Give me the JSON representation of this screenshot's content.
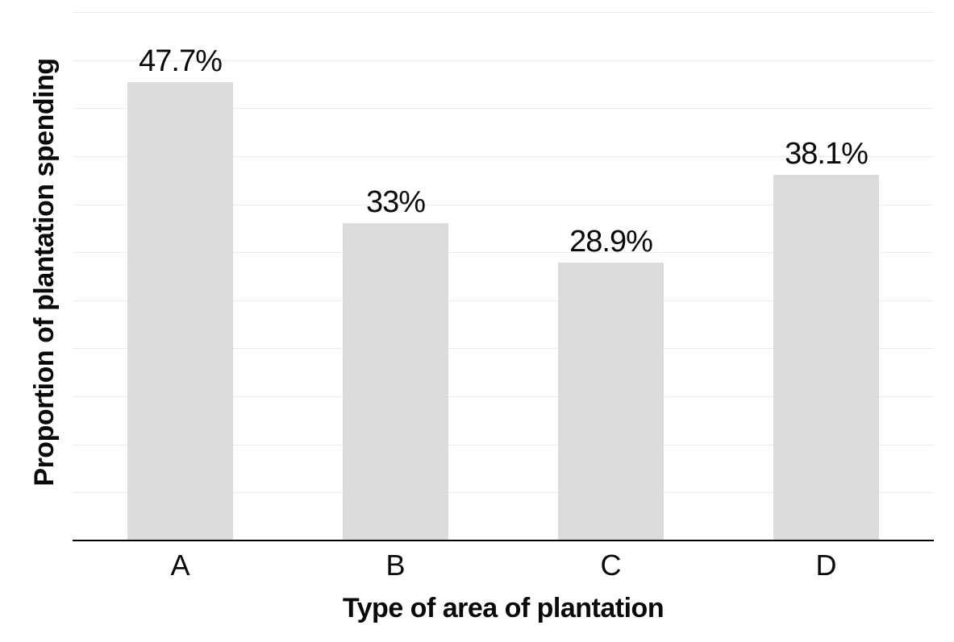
{
  "chart_data": {
    "type": "bar",
    "title": "",
    "categories": [
      "A",
      "B",
      "C",
      "D"
    ],
    "values": [
      47.7,
      33,
      28.9,
      38.1
    ],
    "value_labels": [
      "47.7%",
      "33%",
      "28.9%",
      "38.1%"
    ],
    "xlabel": "Type of area of plantation",
    "ylabel": "Proportion of plantation spending",
    "ylim": [
      0,
      55
    ],
    "y_tick_labels_visible": false,
    "grid": {
      "visible": true,
      "orientation": "horizontal",
      "step_pct": 5,
      "max_pct": 55
    },
    "legend_position": "none",
    "colors": {
      "bar": "#dcdcdc",
      "gridline": "#ebebeb",
      "axis_line": "#000000",
      "text": "#0a0a0a",
      "background": "#ffffff"
    }
  }
}
